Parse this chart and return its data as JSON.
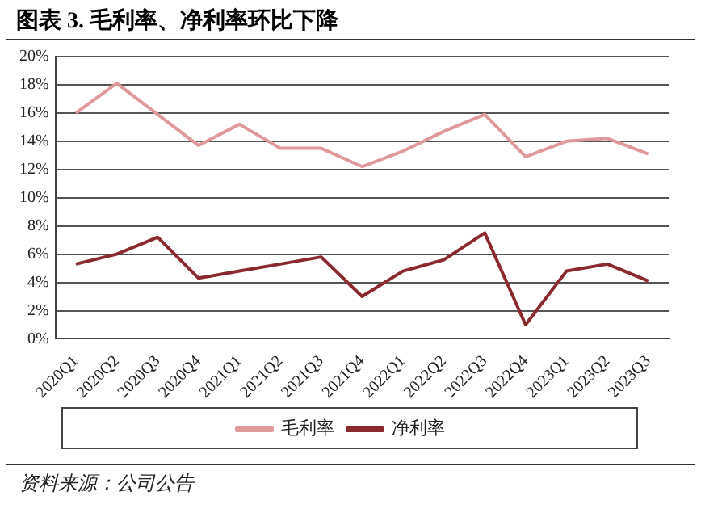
{
  "chart_data": {
    "type": "line",
    "title": "图表 3. 毛利率、净利率环比下降",
    "categories": [
      "2020Q1",
      "2020Q2",
      "2020Q3",
      "2020Q4",
      "2021Q1",
      "2021Q2",
      "2021Q3",
      "2021Q4",
      "2022Q1",
      "2022Q2",
      "2022Q3",
      "2022Q4",
      "2023Q1",
      "2023Q2",
      "2023Q3"
    ],
    "series": [
      {
        "name": "毛利率",
        "color": "#e0999a",
        "values": [
          16.0,
          18.1,
          15.9,
          13.7,
          15.2,
          13.5,
          13.5,
          12.2,
          13.3,
          14.7,
          15.9,
          12.9,
          14.0,
          14.2,
          13.1
        ]
      },
      {
        "name": "净利率",
        "color": "#8b2a2e",
        "values": [
          5.3,
          6.0,
          7.2,
          4.3,
          4.8,
          5.3,
          5.8,
          3.0,
          4.8,
          5.6,
          7.5,
          1.0,
          4.8,
          5.3,
          4.1
        ]
      }
    ],
    "ylim": [
      0,
      20
    ],
    "yticks": [
      {
        "value": 0,
        "label": "0%"
      },
      {
        "value": 2,
        "label": "2%"
      },
      {
        "value": 4,
        "label": "4%"
      },
      {
        "value": 6,
        "label": "6%"
      },
      {
        "value": 8,
        "label": "8%"
      },
      {
        "value": 10,
        "label": "10%"
      },
      {
        "value": 12,
        "label": "12%"
      },
      {
        "value": 14,
        "label": "14%"
      },
      {
        "value": 16,
        "label": "16%"
      },
      {
        "value": 18,
        "label": "18%"
      },
      {
        "value": 20,
        "label": "20%"
      }
    ],
    "grid": "y",
    "legend": "bottom",
    "marker": "none",
    "line_style": "solid",
    "annotations": [
      "资料来源：公司公告"
    ]
  }
}
